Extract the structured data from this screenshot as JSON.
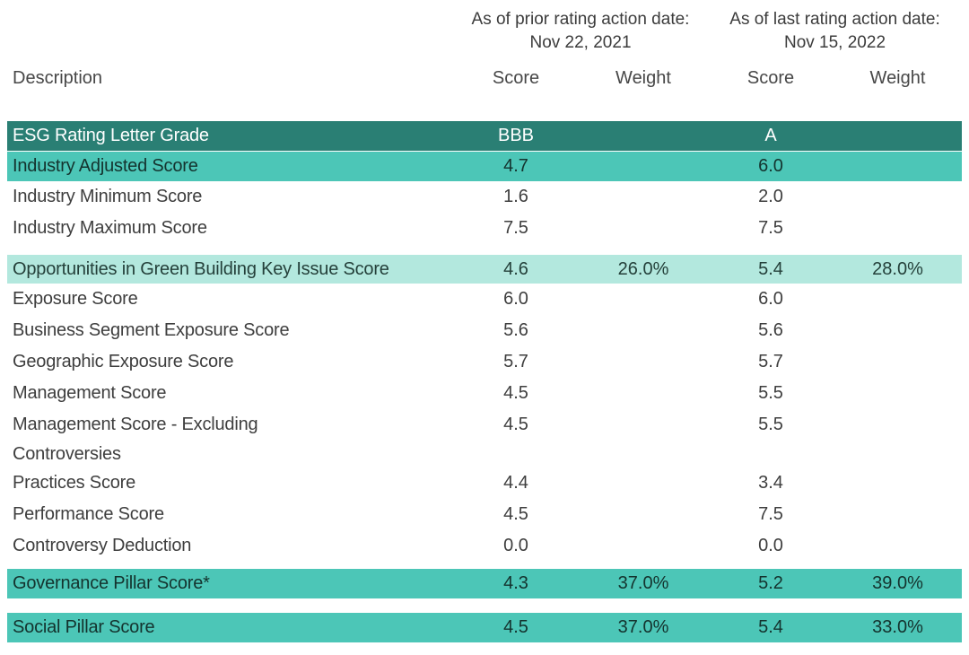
{
  "header": {
    "prior": {
      "caption": "As of prior rating action date:",
      "date": "Nov 22, 2021"
    },
    "last": {
      "caption": "As of last rating action date:",
      "date": "Nov 15, 2022"
    },
    "columns": {
      "description": "Description",
      "score": "Score",
      "weight": "Weight"
    }
  },
  "colors": {
    "dark_teal_row": "#2a7f74",
    "teal_row": "#4cc6b7",
    "mint_row": "#b3e8de",
    "text_on_dark": "#ffffff",
    "text_default": "#3e3e3e"
  },
  "rows": [
    {
      "label": "ESG Rating Letter Grade",
      "score1": "BBB",
      "weight1": "",
      "score2": "A",
      "weight2": ""
    },
    {
      "label": "Industry Adjusted Score",
      "score1": "4.7",
      "weight1": "",
      "score2": "6.0",
      "weight2": ""
    },
    {
      "label": "Industry Minimum Score",
      "score1": "1.6",
      "weight1": "",
      "score2": "2.0",
      "weight2": ""
    },
    {
      "label": "Industry Maximum Score",
      "score1": "7.5",
      "weight1": "",
      "score2": "7.5",
      "weight2": ""
    },
    {
      "label": "Opportunities in Green Building Key Issue Score",
      "score1": "4.6",
      "weight1": "26.0%",
      "score2": "5.4",
      "weight2": "28.0%"
    },
    {
      "label": "Exposure Score",
      "score1": "6.0",
      "weight1": "",
      "score2": "6.0",
      "weight2": ""
    },
    {
      "label": "Business Segment Exposure Score",
      "score1": "5.6",
      "weight1": "",
      "score2": "5.6",
      "weight2": ""
    },
    {
      "label": "Geographic Exposure Score",
      "score1": "5.7",
      "weight1": "",
      "score2": "5.7",
      "weight2": ""
    },
    {
      "label": "Management Score",
      "score1": "4.5",
      "weight1": "",
      "score2": "5.5",
      "weight2": ""
    },
    {
      "label": "Management Score - Excluding Controversies",
      "score1": "4.5",
      "weight1": "",
      "score2": "5.5",
      "weight2": ""
    },
    {
      "label": "Practices Score",
      "score1": "4.4",
      "weight1": "",
      "score2": "3.4",
      "weight2": ""
    },
    {
      "label": "Performance Score",
      "score1": "4.5",
      "weight1": "",
      "score2": "7.5",
      "weight2": ""
    },
    {
      "label": "Controversy Deduction",
      "score1": "0.0",
      "weight1": "",
      "score2": "0.0",
      "weight2": ""
    },
    {
      "label": "Governance Pillar Score*",
      "score1": "4.3",
      "weight1": "37.0%",
      "score2": "5.2",
      "weight2": "39.0%"
    },
    {
      "label": "Social Pillar Score",
      "score1": "4.5",
      "weight1": "37.0%",
      "score2": "5.4",
      "weight2": "33.0%"
    }
  ]
}
